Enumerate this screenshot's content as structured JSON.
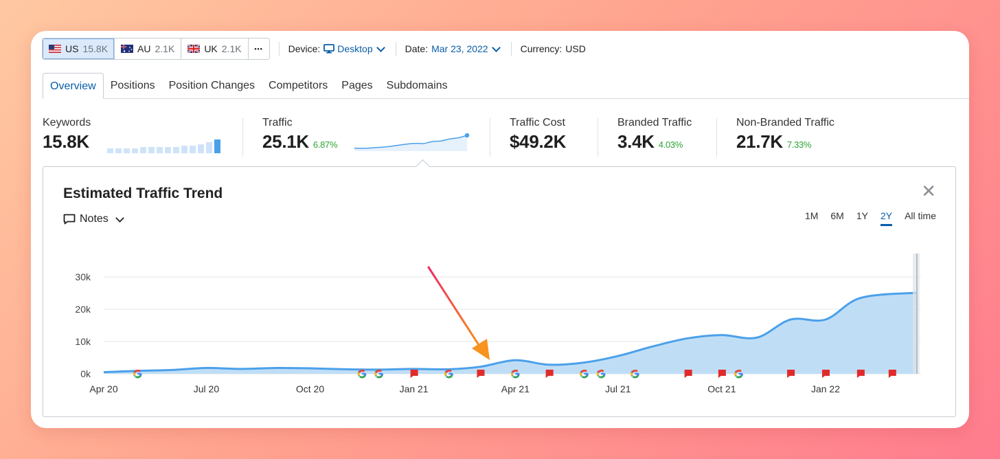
{
  "toolbar": {
    "databases": [
      {
        "code": "US",
        "count": "15.8K"
      },
      {
        "code": "AU",
        "count": "2.1K"
      },
      {
        "code": "UK",
        "count": "2.1K"
      }
    ],
    "more_label": "•••",
    "device_label": "Device:",
    "device_value": "Desktop",
    "date_label": "Date:",
    "date_value": "Mar 23, 2022",
    "currency_label": "Currency:",
    "currency_value": "USD"
  },
  "tabs": [
    "Overview",
    "Positions",
    "Position Changes",
    "Competitors",
    "Pages",
    "Subdomains"
  ],
  "active_tab": "Overview",
  "metrics": {
    "keywords": {
      "label": "Keywords",
      "value": "15.8K"
    },
    "traffic": {
      "label": "Traffic",
      "value": "25.1K",
      "change": "6.87%"
    },
    "traffic_cost": {
      "label": "Traffic Cost",
      "value": "$49.2K"
    },
    "branded": {
      "label": "Branded Traffic",
      "value": "3.4K",
      "change": "4.03%"
    },
    "non_branded": {
      "label": "Non-Branded Traffic",
      "value": "21.7K",
      "change": "7.33%"
    }
  },
  "keywords_sparkline": [
    3,
    3,
    3,
    3,
    4,
    4,
    4,
    4,
    4,
    5,
    5,
    6,
    7,
    9
  ],
  "traffic_sparkline": [
    1.2,
    1.1,
    1.3,
    1.6,
    2.0,
    2.6,
    3.2,
    3.6,
    3.5,
    4.5,
    4.8,
    5.8,
    6.4,
    7.6
  ],
  "panel": {
    "title": "Estimated Traffic Trend",
    "notes_label": "Notes",
    "close_label": "✕",
    "ranges": [
      "1M",
      "6M",
      "1Y",
      "2Y",
      "All time"
    ],
    "active_range": "2Y"
  },
  "colors": {
    "accent": "#0a5ea8",
    "line": "#4ba0ea",
    "area": "#bcdcf5",
    "positive": "#2aa532",
    "flag": "#e02b2b"
  },
  "chart_data": {
    "type": "area",
    "ylim": [
      0,
      30000
    ],
    "ytick_labels": [
      "0k",
      "10k",
      "20k",
      "30k"
    ],
    "ytick_values": [
      0,
      10000,
      20000,
      30000
    ],
    "xtick_labels": [
      "Apr 20",
      "Jul 20",
      "Oct 20",
      "Jan 21",
      "Apr 21",
      "Jul 21",
      "Oct 21",
      "Jan 22"
    ],
    "x_start": "2020-04-01",
    "x_end": "2022-03-23",
    "series": [
      {
        "x": [
          "2020-04-01",
          "2020-05-01",
          "2020-06-01",
          "2020-07-01",
          "2020-08-01",
          "2020-09-01",
          "2020-10-01",
          "2020-11-01",
          "2020-12-01",
          "2021-01-01",
          "2021-02-01",
          "2021-03-01",
          "2021-04-01",
          "2021-05-01",
          "2021-06-01",
          "2021-07-01",
          "2021-08-01",
          "2021-09-01",
          "2021-10-01",
          "2021-11-01",
          "2021-12-01",
          "2022-01-01",
          "2022-02-01",
          "2022-03-23"
        ],
        "values": [
          500,
          900,
          1200,
          1800,
          1500,
          1800,
          1700,
          1400,
          1300,
          1500,
          1400,
          2200,
          4200,
          2800,
          3500,
          5500,
          8500,
          11000,
          12000,
          11200,
          16800,
          16800,
          23500,
          25100
        ]
      }
    ],
    "markers": {
      "google": [
        "2020-05-01",
        "2020-11-16",
        "2020-12-01",
        "2021-02-01",
        "2021-04-01",
        "2021-06-01",
        "2021-06-16",
        "2021-07-16",
        "2021-10-16"
      ],
      "notes": [
        "2021-01-01",
        "2021-03-01",
        "2021-05-01",
        "2021-09-01",
        "2021-10-01",
        "2021-12-01",
        "2022-01-01",
        "2022-02-01",
        "2022-03-01"
      ]
    }
  }
}
